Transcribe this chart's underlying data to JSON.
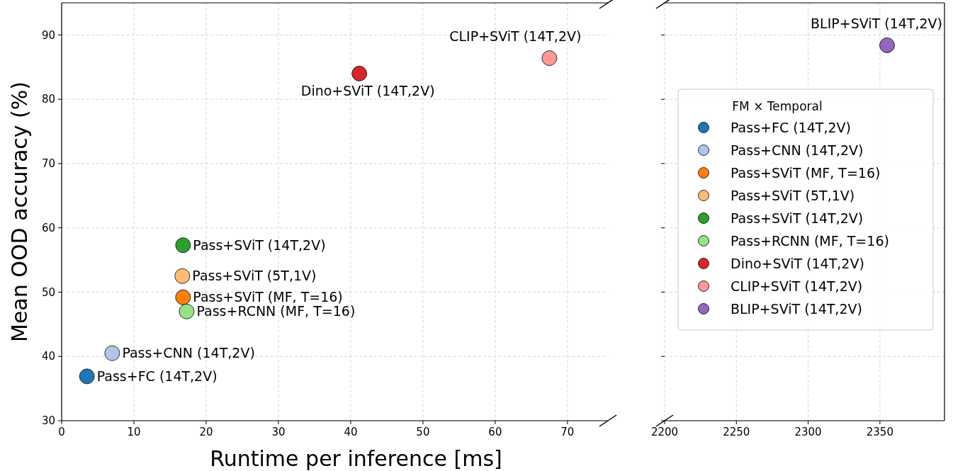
{
  "chart_data": [
    {
      "type": "scatter",
      "xlabel": "Runtime per inference [ms]",
      "ylabel": "Mean OOD accuracy (%)",
      "xlim": [
        0,
        75.6
      ],
      "xticks": [
        0,
        10,
        20,
        30,
        40,
        50,
        60,
        70
      ],
      "ylim": [
        30,
        95
      ],
      "yticks": [
        30,
        40,
        50,
        60,
        70,
        80,
        90
      ],
      "grid": true,
      "marker": "circle",
      "legend": false,
      "series": [
        {
          "name": "Pass+FC (14T,2V)",
          "color": "#1f77b4",
          "x": [
            3.5
          ],
          "values": [
            36.9
          ]
        },
        {
          "name": "Pass+CNN (14T,2V)",
          "color": "#aec7e8",
          "x": [
            7
          ],
          "values": [
            40.5
          ]
        },
        {
          "name": "Pass+SViT (MF, T=16)",
          "color": "#ff7f0e",
          "x": [
            16.8
          ],
          "values": [
            49.2
          ]
        },
        {
          "name": "Pass+SViT (5T,1V)",
          "color": "#ffbb78",
          "x": [
            16.7
          ],
          "values": [
            52.5
          ]
        },
        {
          "name": "Pass+SViT (14T,2V)",
          "color": "#2ca02c",
          "x": [
            16.8
          ],
          "values": [
            57.3
          ]
        },
        {
          "name": "Pass+RCNN (MF, T=16)",
          "color": "#98df8a",
          "x": [
            17.3
          ],
          "values": [
            47.0
          ]
        },
        {
          "name": "Dino+SViT (14T,2V)",
          "color": "#d62728",
          "x": [
            41.2
          ],
          "values": [
            84.0
          ]
        },
        {
          "name": "CLIP+SViT (14T,2V)",
          "color": "#ff9896",
          "x": [
            67.5
          ],
          "values": [
            86.4
          ]
        }
      ]
    },
    {
      "type": "scatter",
      "xlim": [
        2200,
        2395
      ],
      "xticks": [
        2200,
        2250,
        2300,
        2350
      ],
      "ylim": [
        30,
        95
      ],
      "yticks": [
        30,
        40,
        50,
        60,
        70,
        80,
        90
      ],
      "tick_labels": "x",
      "grid": true,
      "marker": "circle",
      "legend": "right",
      "legend_title": "FM × Temporal",
      "series": [
        {
          "name": "Pass+FC (14T,2V)",
          "color": "#1f77b4"
        },
        {
          "name": "Pass+CNN (14T,2V)",
          "color": "#aec7e8"
        },
        {
          "name": "Pass+SViT (MF, T=16)",
          "color": "#ff7f0e"
        },
        {
          "name": "Pass+SViT (5T,1V)",
          "color": "#ffbb78"
        },
        {
          "name": "Pass+SViT (14T,2V)",
          "color": "#2ca02c"
        },
        {
          "name": "Pass+RCNN (MF, T=16)",
          "color": "#98df8a"
        },
        {
          "name": "Dino+SViT (14T,2V)",
          "color": "#d62728"
        },
        {
          "name": "CLIP+SViT (14T,2V)",
          "color": "#ff9896"
        },
        {
          "name": "BLIP+SViT (14T,2V)",
          "color": "#9467bd",
          "x": [
            2355
          ],
          "values": [
            88.4
          ]
        }
      ]
    }
  ]
}
